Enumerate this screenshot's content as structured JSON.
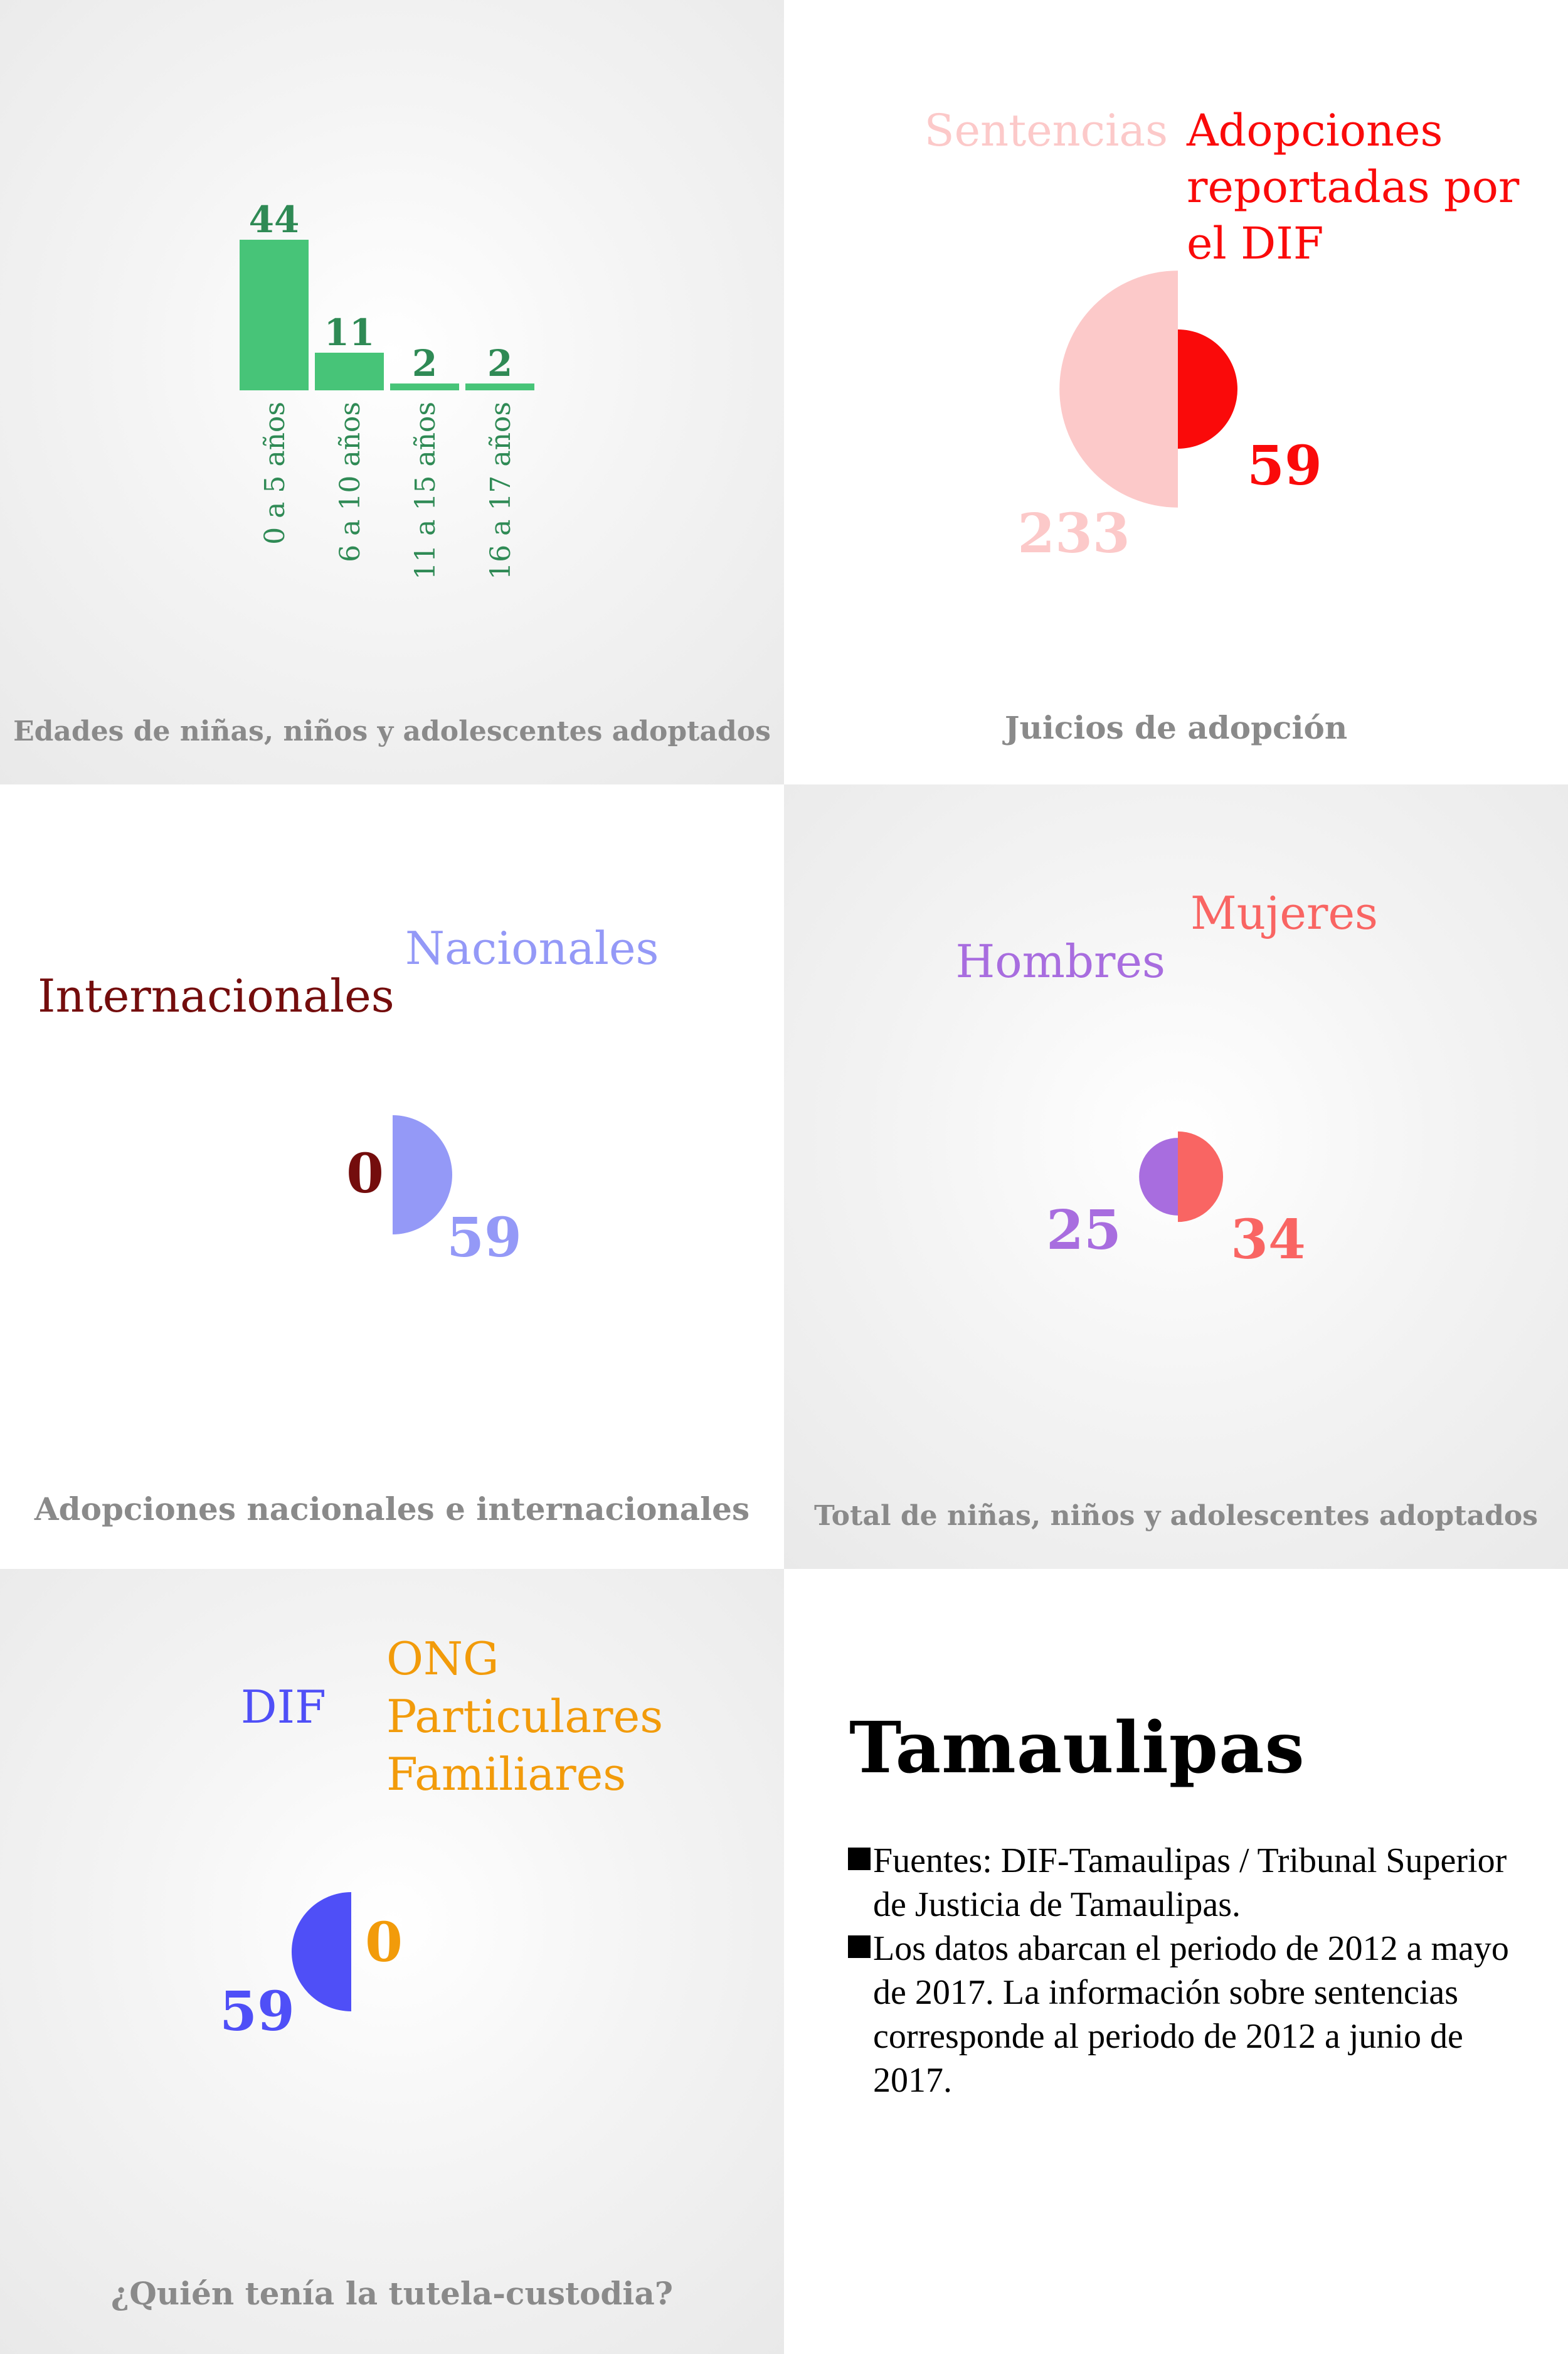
{
  "state": "Tamaulipas",
  "notes": [
    "Fuentes: DIF-Tamaulipas / Tribunal Superior de Justicia de Tamaulipas.",
    "Los datos abarcan el periodo de 2012 a mayo de 2017. La información sobre sentencias corresponde al periodo de 2012 a junio de 2017."
  ],
  "chart_data": [
    {
      "type": "bar",
      "title": "Edades de niñas, niños y adolescentes adoptados",
      "categories": [
        "0 a 5 años",
        "6 a 10 años",
        "11 a 15 años",
        "16 a 17 años"
      ],
      "values": [
        44,
        11,
        2,
        2
      ],
      "color": "#47c478",
      "label_color": "#2f8a55"
    },
    {
      "type": "pie",
      "title": "Juicios de adopción",
      "series": [
        {
          "name": "Sentencias",
          "value": 233,
          "color": "#fcc9c9"
        },
        {
          "name": "Adopciones reportadas por el DIF",
          "value": 59,
          "color": "#fa0a0a"
        }
      ]
    },
    {
      "type": "pie",
      "title": "Adopciones nacionales e internacionales",
      "series": [
        {
          "name": "Internacionales",
          "value": 0,
          "color": "#740d0d"
        },
        {
          "name": "Nacionales",
          "value": 59,
          "color": "#9499f7"
        }
      ]
    },
    {
      "type": "pie",
      "title": "Total de niñas, niños y adolescentes adoptados",
      "series": [
        {
          "name": "Hombres",
          "value": 25,
          "color": "#a86ddf"
        },
        {
          "name": "Mujeres",
          "value": 34,
          "color": "#f96563"
        }
      ]
    },
    {
      "type": "pie",
      "title": "¿Quién tenía la tutela-custodia?",
      "series": [
        {
          "name": "DIF",
          "value": 59,
          "color": "#4f4ff7"
        },
        {
          "name": "ONG Particulares Familiares",
          "value": 0,
          "color": "#f29b0a"
        }
      ]
    }
  ]
}
